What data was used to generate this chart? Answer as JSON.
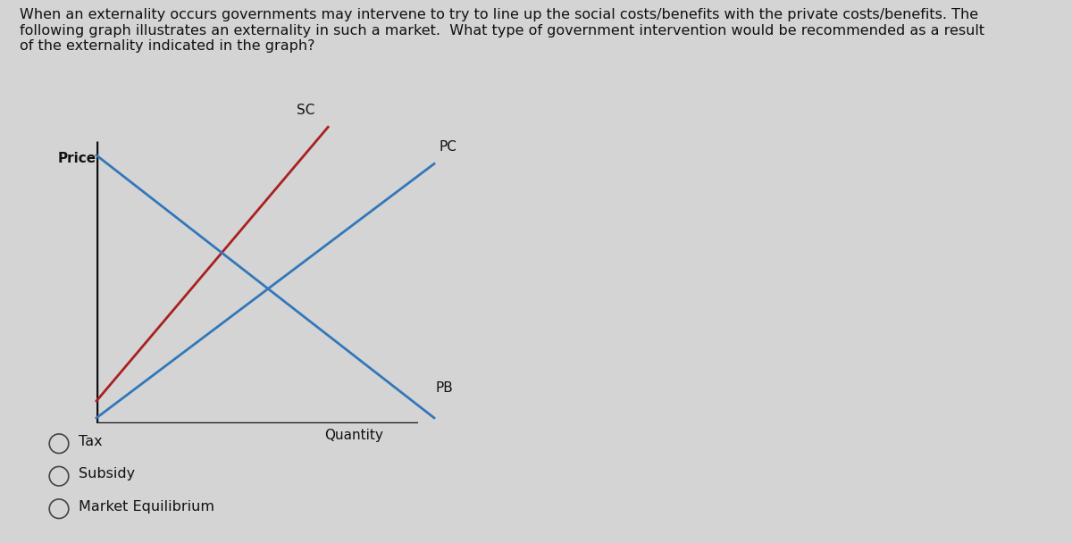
{
  "title_text": "When an externality occurs governments may intervene to try to line up the social costs/benefits with the private costs/benefits. The\nfollowing graph illustrates an externality in such a market.  What type of government intervention would be recommended as a result\nof the externality indicated in the graph?",
  "background_color": "#d4d4d4",
  "price_label": "Price",
  "quantity_label": "Quantity",
  "sc_label": "SC",
  "pc_label": "PC",
  "pb_label": "PB",
  "sc_color": "#aa2020",
  "pc_color": "#3377bb",
  "pb_color": "#3377bb",
  "axis_color": "#111111",
  "options": [
    "Tax",
    "Subsidy",
    "Market Equilibrium"
  ],
  "title_fontsize": 11.5,
  "label_fontsize": 11
}
